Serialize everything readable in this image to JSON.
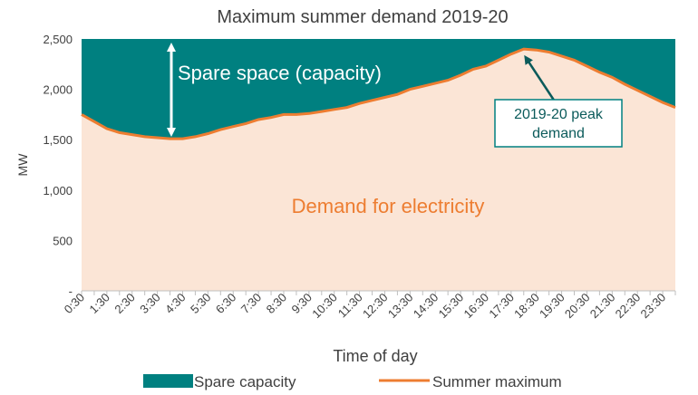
{
  "chart_data": {
    "type": "area",
    "title": "Maximum summer demand 2019-20",
    "xlabel": "Time of day",
    "ylabel": "MW",
    "ylim": [
      0,
      2500
    ],
    "y_ticks": [
      {
        "value": 0,
        "label": "-"
      },
      {
        "value": 500,
        "label": "500"
      },
      {
        "value": 1000,
        "label": "1,000"
      },
      {
        "value": 1500,
        "label": "1,500"
      },
      {
        "value": 2000,
        "label": "2,000"
      },
      {
        "value": 2500,
        "label": "2,500"
      }
    ],
    "x": [
      "0:30",
      "1:00",
      "1:30",
      "2:00",
      "2:30",
      "3:00",
      "3:30",
      "4:00",
      "4:30",
      "5:00",
      "5:30",
      "6:00",
      "6:30",
      "7:00",
      "7:30",
      "8:00",
      "8:30",
      "9:00",
      "9:30",
      "10:00",
      "10:30",
      "11:00",
      "11:30",
      "12:00",
      "12:30",
      "13:00",
      "13:30",
      "14:00",
      "14:30",
      "15:00",
      "15:30",
      "16:00",
      "16:30",
      "17:00",
      "17:30",
      "18:00",
      "18:30",
      "19:00",
      "19:30",
      "20:00",
      "20:30",
      "21:00",
      "21:30",
      "22:00",
      "22:30",
      "23:00",
      "23:30",
      "24:00"
    ],
    "x_tick_labels": [
      "0:30",
      "1:30",
      "2:30",
      "3:30",
      "4:30",
      "5:30",
      "6:30",
      "7:30",
      "8:30",
      "9:30",
      "10:30",
      "11:30",
      "12:30",
      "13:30",
      "14:30",
      "15:30",
      "16:30",
      "17:30",
      "18:30",
      "19:30",
      "20:30",
      "21:30",
      "22:30",
      "23:30"
    ],
    "series": [
      {
        "name": "Summer maximum",
        "color": "#ed7d31",
        "values": [
          1750,
          1680,
          1610,
          1570,
          1550,
          1530,
          1520,
          1510,
          1510,
          1530,
          1560,
          1600,
          1630,
          1660,
          1700,
          1720,
          1750,
          1750,
          1760,
          1780,
          1800,
          1820,
          1860,
          1890,
          1920,
          1950,
          2000,
          2030,
          2060,
          2090,
          2140,
          2200,
          2230,
          2290,
          2350,
          2400,
          2390,
          2370,
          2330,
          2290,
          2230,
          2170,
          2120,
          2050,
          1990,
          1930,
          1870,
          1820
        ]
      },
      {
        "name": "Spare capacity",
        "color": "#008080",
        "values": [
          750,
          820,
          890,
          930,
          950,
          970,
          980,
          990,
          990,
          970,
          940,
          900,
          870,
          840,
          800,
          780,
          750,
          750,
          740,
          720,
          700,
          680,
          640,
          610,
          580,
          550,
          500,
          470,
          440,
          410,
          360,
          300,
          270,
          210,
          150,
          100,
          110,
          130,
          170,
          210,
          270,
          330,
          380,
          450,
          510,
          570,
          630,
          680
        ]
      }
    ],
    "demand_fill_color": "#fbe5d6",
    "annotations": {
      "spare_space": "Spare space (capacity)",
      "demand": "Demand for electricity",
      "peak": [
        "2019-20 peak",
        "demand"
      ]
    },
    "legend": {
      "position": "bottom",
      "items": [
        {
          "label": "Spare capacity",
          "color": "#008080",
          "kind": "area"
        },
        {
          "label": "Summer maximum",
          "color": "#ed7d31",
          "kind": "line"
        }
      ]
    },
    "grid": false
  }
}
